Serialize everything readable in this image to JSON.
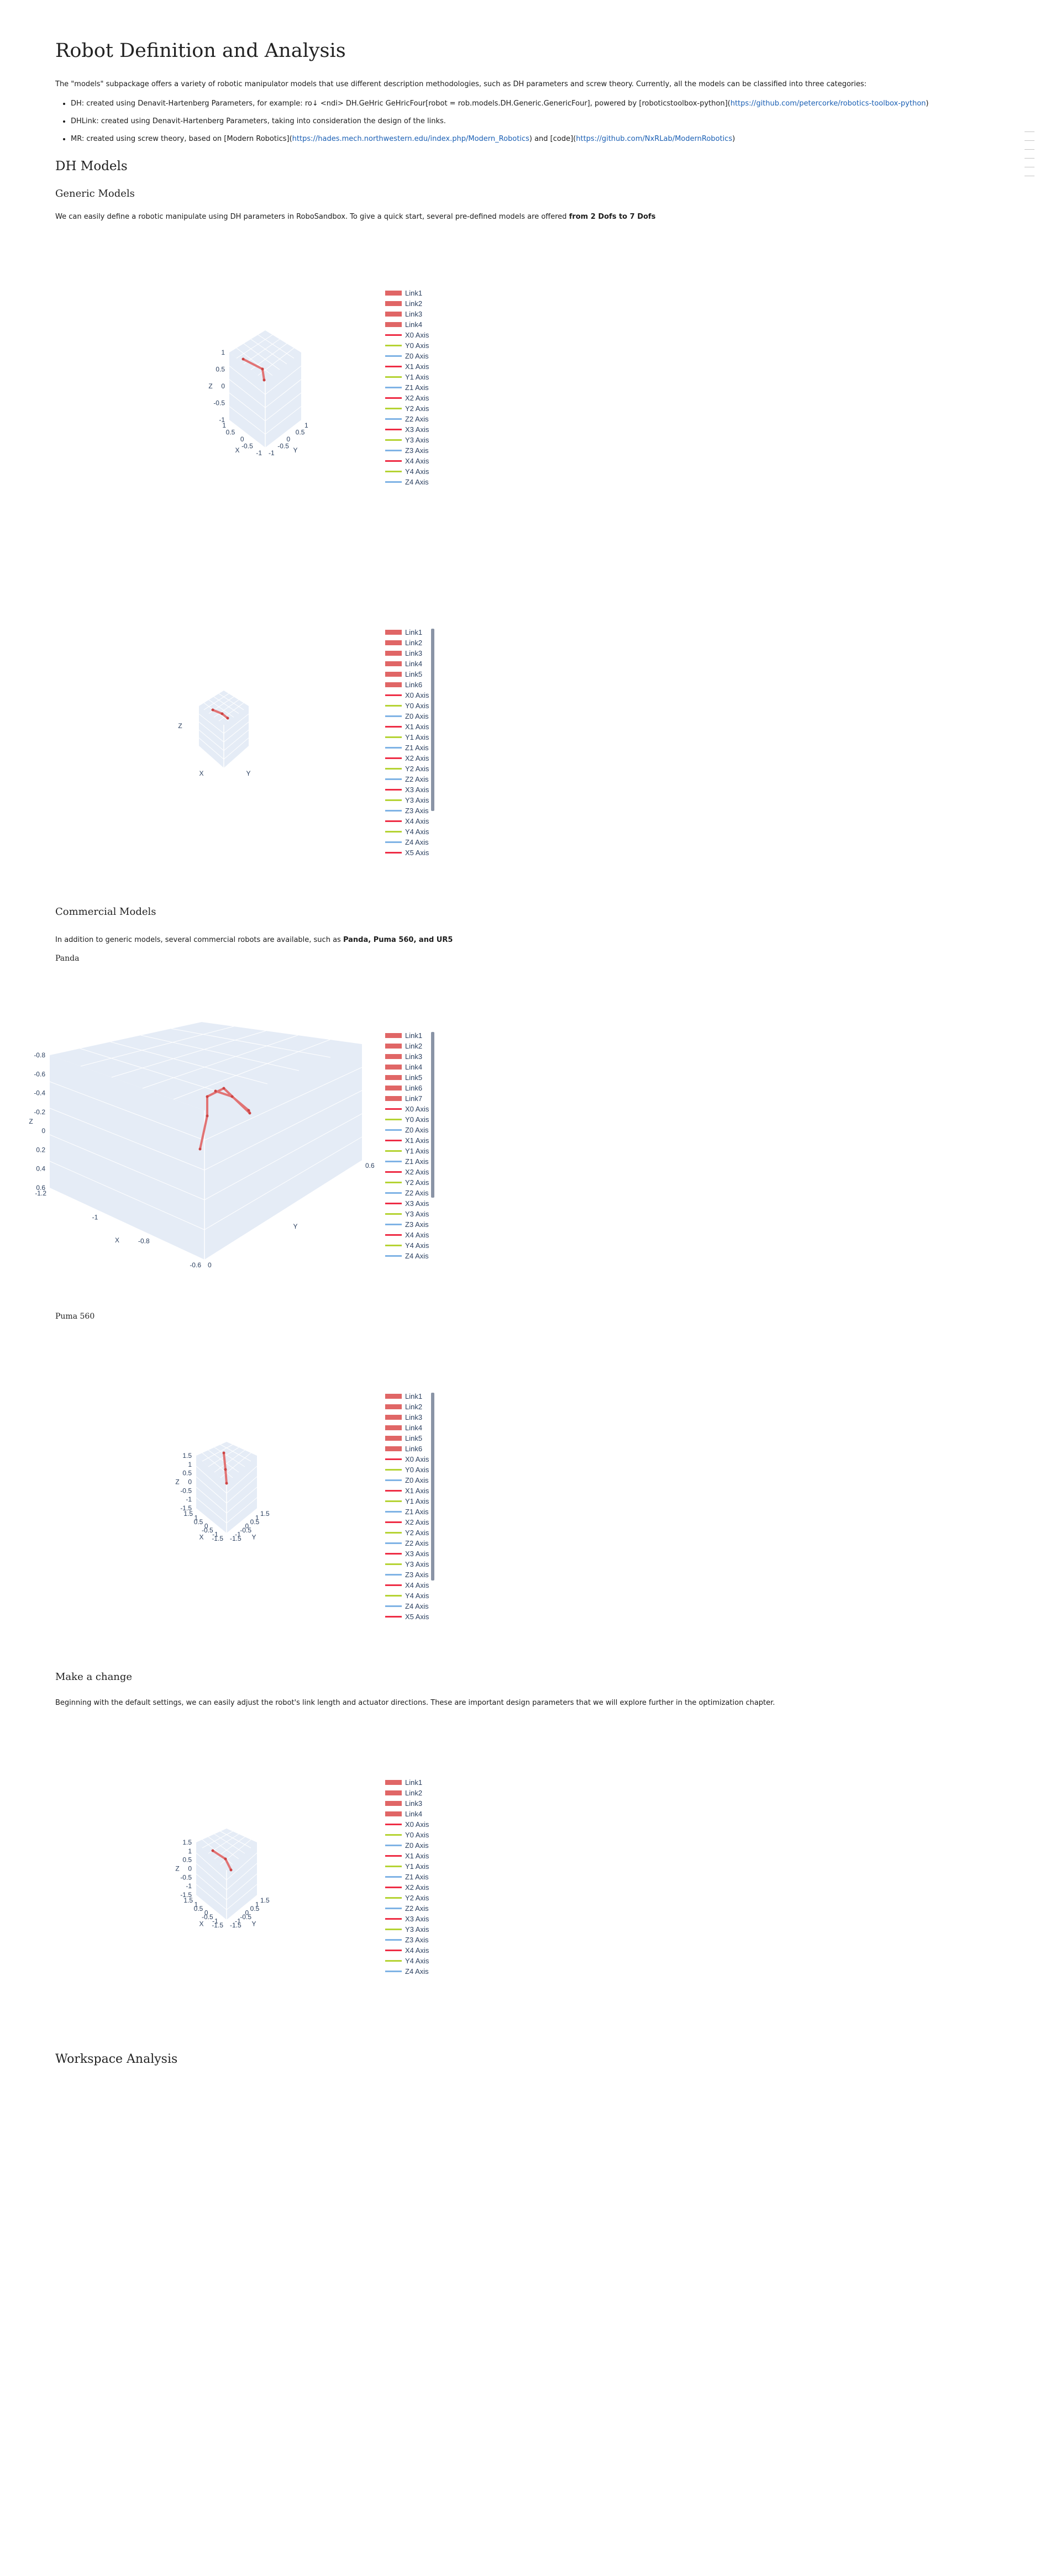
{
  "title": "Robot Definition and Analysis",
  "intro": "The \"models\" subpackage offers a variety of robotic manipulator models that use different description methodologies, such as DH parameters and screw theory. Currently, all the models can be classified into three categories:",
  "bullets": [
    {
      "text": "DH: created using Denavit-Hartenberg Parameters, for example: ro↓ <ndi> DH.GeHric GeHricFour[robot = rob.models.DH.Generic.GenericFour], powered by [roboticstoolbox-python](",
      "link": "https://github.com/petercorke/robotics-toolbox-python",
      "after": ")"
    },
    {
      "text": "DHLink: created using Denavit-Hartenberg Parameters, taking into consideration the design of the links.",
      "link": "",
      "after": ""
    },
    {
      "text": "MR: created using screw theory, based on [Modern Robotics](",
      "link": "https://hades.mech.northwestern.edu/index.php/Modern_Robotics",
      "mid": ") and [code](",
      "link2": "https://github.com/NxRLab/ModernRobotics",
      "after": ")"
    }
  ],
  "sections": {
    "dh_models": "DH Models",
    "generic_models": "Generic Models",
    "generic_text_pre": "We can easily define a robotic manipulate using DH parameters in RoboSandbox. To give a quick start, several pre-defined models are offered ",
    "generic_text_bold": "from 2 Dofs to 7 Dofs",
    "commercial_models": "Commercial Models",
    "commercial_text_pre": "In addition to generic models, several commercial robots are available, such as ",
    "commercial_text_bold": "Panda, Puma 560, and UR5",
    "panda": "Panda",
    "puma": "Puma 560",
    "make_change": "Make a change",
    "make_change_text": "Beginning with the default settings, we can easily adjust the robot's link length and actuator directions. These are important design parameters that we will explore further in the optimization chapter.",
    "workspace": "Workspace Analysis"
  },
  "colors": {
    "link": "#e06666",
    "x_axis": "#ee2d45",
    "y_axis": "#b5d334",
    "z_axis": "#7fb3e5",
    "scene_bg": "#e5ecf6",
    "grid": "#ffffff",
    "text": "#2a3f5f"
  },
  "plots": [
    {
      "id": "generic-four",
      "axis_letters": {
        "x": "X",
        "y": "Y",
        "z": "Z"
      },
      "ticks_x": [
        "1",
        "0.5",
        "0",
        "-0.5",
        "-1"
      ],
      "ticks_y": [
        "-1",
        "-0.5",
        "0",
        "0.5",
        "1"
      ],
      "ticks_z": [
        "1",
        "0.5",
        "0",
        "-0.5",
        "-1"
      ],
      "legend": [
        "Link1",
        "Link2",
        "Link3",
        "Link4",
        "X0 Axis",
        "Y0 Axis",
        "Z0 Axis",
        "X1 Axis",
        "Y1 Axis",
        "Z1 Axis",
        "X2 Axis",
        "Y2 Axis",
        "Z2 Axis",
        "X3 Axis",
        "Y3 Axis",
        "Z3 Axis",
        "X4 Axis",
        "Y4 Axis",
        "Z4 Axis"
      ]
    },
    {
      "id": "generic-six",
      "axis_letters": {
        "x": "X",
        "y": "Y",
        "z": "Z"
      },
      "ticks_x": [],
      "ticks_y": [],
      "ticks_z": [],
      "legend": [
        "Link1",
        "Link2",
        "Link3",
        "Link4",
        "Link5",
        "Link6",
        "X0 Axis",
        "Y0 Axis",
        "Z0 Axis",
        "X1 Axis",
        "Y1 Axis",
        "Z1 Axis",
        "X2 Axis",
        "Y2 Axis",
        "Z2 Axis",
        "X3 Axis",
        "Y3 Axis",
        "Z3 Axis",
        "X4 Axis",
        "Y4 Axis",
        "Z4 Axis",
        "X5 Axis"
      ]
    },
    {
      "id": "panda",
      "axis_letters": {
        "x": "X",
        "y": "Y",
        "z": "Z"
      },
      "ticks_x": [
        "-1.2",
        "-1",
        "-0.8",
        "-0.6"
      ],
      "ticks_y": [
        "0",
        "0.6"
      ],
      "ticks_z": [
        "-0.8",
        "-0.6",
        "-0.4",
        "-0.2",
        "0",
        "0.2",
        "0.4",
        "0.6"
      ],
      "legend": [
        "Link1",
        "Link2",
        "Link3",
        "Link4",
        "Link5",
        "Link6",
        "Link7",
        "X0 Axis",
        "Y0 Axis",
        "Z0 Axis",
        "X1 Axis",
        "Y1 Axis",
        "Z1 Axis",
        "X2 Axis",
        "Y2 Axis",
        "Z2 Axis",
        "X3 Axis",
        "Y3 Axis",
        "Z3 Axis",
        "X4 Axis",
        "Y4 Axis",
        "Z4 Axis"
      ]
    },
    {
      "id": "puma",
      "axis_letters": {
        "x": "X",
        "y": "Y",
        "z": "Z"
      },
      "ticks_x": [
        "1.5",
        "1",
        "0.5",
        "0",
        "-0.5",
        "-1",
        "-1.5"
      ],
      "ticks_y": [
        "-1.5",
        "-1",
        "-0.5",
        "0",
        "0.5",
        "1",
        "1.5"
      ],
      "ticks_z": [
        "1.5",
        "1",
        "0.5",
        "0",
        "-0.5",
        "-1",
        "-1.5"
      ],
      "legend": [
        "Link1",
        "Link2",
        "Link3",
        "Link4",
        "Link5",
        "Link6",
        "X0 Axis",
        "Y0 Axis",
        "Z0 Axis",
        "X1 Axis",
        "Y1 Axis",
        "Z1 Axis",
        "X2 Axis",
        "Y2 Axis",
        "Z2 Axis",
        "X3 Axis",
        "Y3 Axis",
        "Z3 Axis",
        "X4 Axis",
        "Y4 Axis",
        "Z4 Axis",
        "X5 Axis"
      ]
    },
    {
      "id": "make-change",
      "axis_letters": {
        "x": "X",
        "y": "Y",
        "z": "Z"
      },
      "ticks_x": [
        "1.5",
        "1",
        "0.5",
        "0",
        "-0.5",
        "-1",
        "-1.5"
      ],
      "ticks_y": [
        "-1.5",
        "-1",
        "-0.5",
        "0",
        "0.5",
        "1",
        "1.5"
      ],
      "ticks_z": [
        "1.5",
        "1",
        "0.5",
        "0",
        "-0.5",
        "-1",
        "-1.5"
      ],
      "legend": [
        "Link1",
        "Link2",
        "Link3",
        "Link4",
        "X0 Axis",
        "Y0 Axis",
        "Z0 Axis",
        "X1 Axis",
        "Y1 Axis",
        "Z1 Axis",
        "X2 Axis",
        "Y2 Axis",
        "Z2 Axis",
        "X3 Axis",
        "Y3 Axis",
        "Z3 Axis",
        "X4 Axis",
        "Y4 Axis",
        "Z4 Axis"
      ]
    }
  ]
}
